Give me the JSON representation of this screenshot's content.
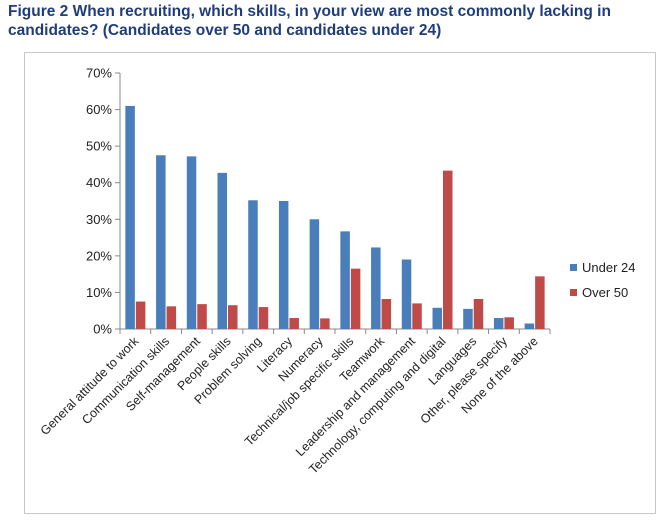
{
  "chart_data": {
    "type": "bar",
    "title": "Figure 2 When recruiting, which skills, in your view are most commonly lacking in candidates? (Candidates over 50 and candidates under 24)",
    "categories": [
      "General attitude to work",
      "Communication skills",
      "Self-management",
      "People skills",
      "Problem solving",
      "Literacy",
      "Numeracy",
      "Technical/job specific skills",
      "Teamwork",
      "Leadership and management",
      "Technology, computing and digital",
      "Languages",
      "Other, please specify",
      "None of the above"
    ],
    "series": [
      {
        "name": "Under 24",
        "color": "#4a7ebb",
        "values": [
          61,
          47.5,
          47.2,
          42.7,
          35.2,
          35,
          30,
          26.7,
          22.3,
          19,
          5.8,
          5.5,
          3,
          1.5
        ]
      },
      {
        "name": "Over 50",
        "color": "#be4b48",
        "values": [
          7.5,
          6.2,
          6.8,
          6.5,
          6,
          3,
          2.9,
          16.5,
          8.2,
          7,
          43.3,
          8.2,
          3.2,
          14.4
        ]
      }
    ],
    "yticks": [
      "0%",
      "10%",
      "20%",
      "30%",
      "40%",
      "50%",
      "60%",
      "70%"
    ],
    "ylim": [
      0,
      70
    ],
    "grid": false,
    "legend_position": "right"
  }
}
